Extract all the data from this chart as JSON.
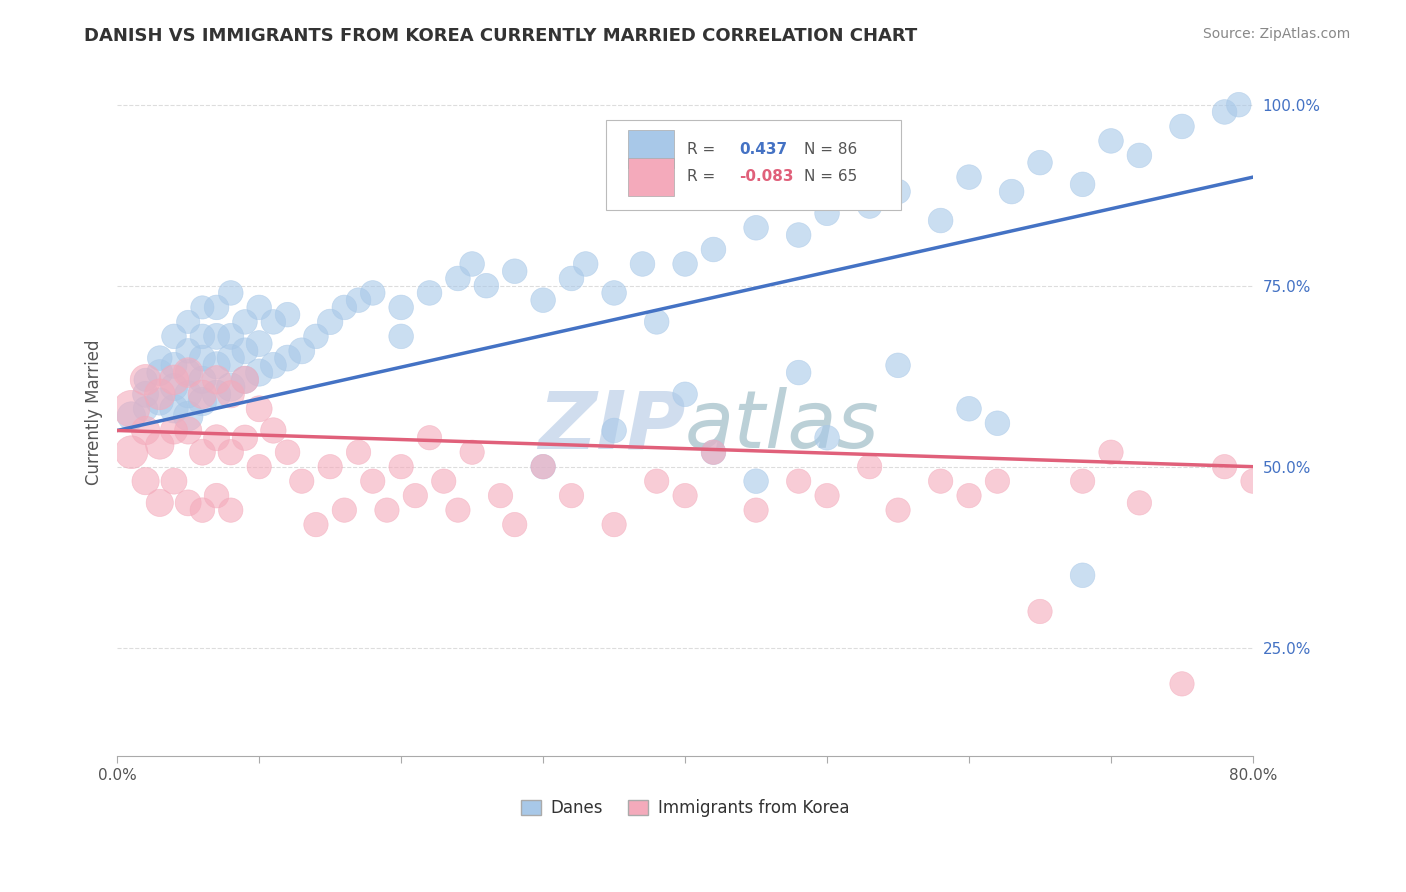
{
  "title": "DANISH VS IMMIGRANTS FROM KOREA CURRENTLY MARRIED CORRELATION CHART",
  "source": "Source: ZipAtlas.com",
  "ylabel": "Currently Married",
  "xlim": [
    0.0,
    0.8
  ],
  "ylim": [
    0.1,
    1.05
  ],
  "xticks": [
    0.0,
    0.1,
    0.2,
    0.3,
    0.4,
    0.5,
    0.6,
    0.7,
    0.8
  ],
  "xticklabels": [
    "0.0%",
    "",
    "",
    "",
    "",
    "",
    "",
    "",
    "80.0%"
  ],
  "yticks": [
    0.25,
    0.5,
    0.75,
    1.0
  ],
  "yticklabels": [
    "25.0%",
    "50.0%",
    "75.0%",
    "100.0%"
  ],
  "legend_r_blue": "0.437",
  "legend_n_blue": "86",
  "legend_r_pink": "-0.083",
  "legend_n_pink": "65",
  "blue_color": "#A8C8E8",
  "pink_color": "#F4AABB",
  "blue_line_color": "#4472C4",
  "pink_line_color": "#E0607A",
  "watermark_color": "#C8D8EC",
  "background_color": "#FFFFFF",
  "grid_color": "#DDDDDD",
  "danes_x": [
    0.01,
    0.02,
    0.02,
    0.02,
    0.03,
    0.03,
    0.03,
    0.04,
    0.04,
    0.04,
    0.04,
    0.05,
    0.05,
    0.05,
    0.05,
    0.05,
    0.06,
    0.06,
    0.06,
    0.06,
    0.06,
    0.07,
    0.07,
    0.07,
    0.07,
    0.08,
    0.08,
    0.08,
    0.08,
    0.09,
    0.09,
    0.09,
    0.1,
    0.1,
    0.1,
    0.11,
    0.11,
    0.12,
    0.12,
    0.13,
    0.14,
    0.15,
    0.16,
    0.17,
    0.18,
    0.2,
    0.22,
    0.24,
    0.26,
    0.28,
    0.3,
    0.32,
    0.33,
    0.35,
    0.37,
    0.4,
    0.42,
    0.45,
    0.48,
    0.5,
    0.53,
    0.55,
    0.58,
    0.6,
    0.63,
    0.65,
    0.68,
    0.7,
    0.72,
    0.75,
    0.78,
    0.79,
    0.62,
    0.68,
    0.45,
    0.5,
    0.35,
    0.4,
    0.2,
    0.25,
    0.3,
    0.55,
    0.6,
    0.38,
    0.42,
    0.48
  ],
  "danes_y": [
    0.57,
    0.6,
    0.58,
    0.62,
    0.59,
    0.63,
    0.65,
    0.58,
    0.61,
    0.64,
    0.68,
    0.57,
    0.6,
    0.63,
    0.66,
    0.7,
    0.59,
    0.62,
    0.65,
    0.68,
    0.72,
    0.6,
    0.64,
    0.68,
    0.72,
    0.61,
    0.65,
    0.68,
    0.74,
    0.62,
    0.66,
    0.7,
    0.63,
    0.67,
    0.72,
    0.64,
    0.7,
    0.65,
    0.71,
    0.66,
    0.68,
    0.7,
    0.72,
    0.73,
    0.74,
    0.72,
    0.74,
    0.76,
    0.75,
    0.77,
    0.73,
    0.76,
    0.78,
    0.74,
    0.78,
    0.78,
    0.8,
    0.83,
    0.82,
    0.85,
    0.86,
    0.88,
    0.84,
    0.9,
    0.88,
    0.92,
    0.89,
    0.95,
    0.93,
    0.97,
    0.99,
    1.0,
    0.56,
    0.35,
    0.48,
    0.54,
    0.55,
    0.6,
    0.68,
    0.78,
    0.5,
    0.64,
    0.58,
    0.7,
    0.52,
    0.63
  ],
  "danes_size": [
    60,
    50,
    45,
    40,
    55,
    50,
    45,
    60,
    55,
    50,
    45,
    65,
    55,
    50,
    45,
    40,
    60,
    55,
    50,
    45,
    40,
    60,
    55,
    50,
    45,
    60,
    55,
    50,
    45,
    55,
    50,
    45,
    55,
    50,
    45,
    50,
    45,
    50,
    45,
    50,
    45,
    48,
    45,
    45,
    45,
    45,
    45,
    45,
    45,
    45,
    45,
    45,
    45,
    45,
    45,
    45,
    45,
    45,
    45,
    45,
    45,
    45,
    45,
    45,
    45,
    45,
    45,
    45,
    45,
    45,
    45,
    45,
    45,
    45,
    45,
    45,
    45,
    45,
    45,
    45,
    45,
    45,
    45,
    45,
    45,
    45
  ],
  "korea_x": [
    0.01,
    0.01,
    0.02,
    0.02,
    0.02,
    0.03,
    0.03,
    0.03,
    0.04,
    0.04,
    0.04,
    0.05,
    0.05,
    0.05,
    0.06,
    0.06,
    0.06,
    0.07,
    0.07,
    0.07,
    0.08,
    0.08,
    0.08,
    0.09,
    0.09,
    0.1,
    0.1,
    0.11,
    0.12,
    0.13,
    0.14,
    0.15,
    0.16,
    0.17,
    0.18,
    0.19,
    0.2,
    0.21,
    0.22,
    0.23,
    0.24,
    0.25,
    0.27,
    0.28,
    0.3,
    0.32,
    0.35,
    0.38,
    0.4,
    0.42,
    0.45,
    0.48,
    0.5,
    0.53,
    0.55,
    0.58,
    0.6,
    0.62,
    0.65,
    0.68,
    0.7,
    0.72,
    0.75,
    0.78,
    0.8
  ],
  "korea_y": [
    0.58,
    0.52,
    0.62,
    0.55,
    0.48,
    0.6,
    0.53,
    0.45,
    0.62,
    0.55,
    0.48,
    0.63,
    0.55,
    0.45,
    0.6,
    0.52,
    0.44,
    0.62,
    0.54,
    0.46,
    0.6,
    0.52,
    0.44,
    0.62,
    0.54,
    0.58,
    0.5,
    0.55,
    0.52,
    0.48,
    0.42,
    0.5,
    0.44,
    0.52,
    0.48,
    0.44,
    0.5,
    0.46,
    0.54,
    0.48,
    0.44,
    0.52,
    0.46,
    0.42,
    0.5,
    0.46,
    0.42,
    0.48,
    0.46,
    0.52,
    0.44,
    0.48,
    0.46,
    0.5,
    0.44,
    0.48,
    0.46,
    0.48,
    0.3,
    0.48,
    0.52,
    0.45,
    0.2,
    0.5,
    0.48
  ],
  "korea_size": [
    100,
    80,
    70,
    60,
    55,
    70,
    60,
    55,
    65,
    55,
    50,
    65,
    55,
    50,
    60,
    50,
    45,
    60,
    50,
    45,
    55,
    48,
    44,
    55,
    48,
    50,
    44,
    48,
    45,
    44,
    44,
    44,
    44,
    44,
    44,
    44,
    44,
    44,
    44,
    44,
    44,
    44,
    44,
    44,
    44,
    44,
    44,
    44,
    44,
    44,
    44,
    44,
    44,
    44,
    44,
    44,
    44,
    44,
    44,
    44,
    44,
    44,
    44,
    44,
    44
  ]
}
